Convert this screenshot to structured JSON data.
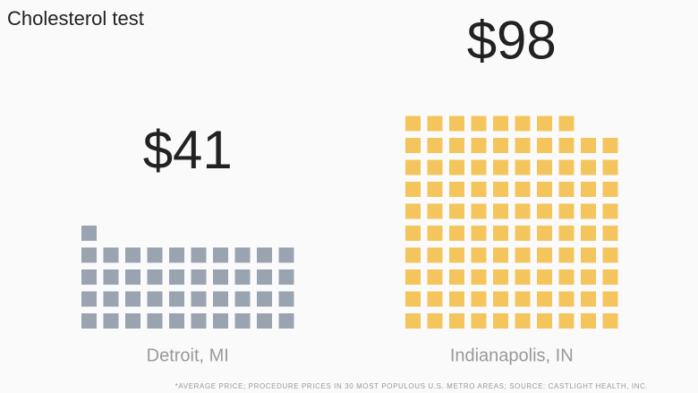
{
  "chart_data": {
    "type": "waffle",
    "title": "Cholesterol test",
    "categories": [
      "Detroit, MI",
      "Indianapolis, IN"
    ],
    "values": [
      41,
      98
    ],
    "value_labels": [
      "$41",
      "$98"
    ],
    "colors": [
      "#9aa4b0",
      "#f4c55c"
    ],
    "footnote": "*AVERAGE PRICE; PROCEDURE PRICES IN 30 MOST POPULOUS U.S. METRO AREAS; SOURCE: CASTLIGHT HEALTH, INC."
  }
}
